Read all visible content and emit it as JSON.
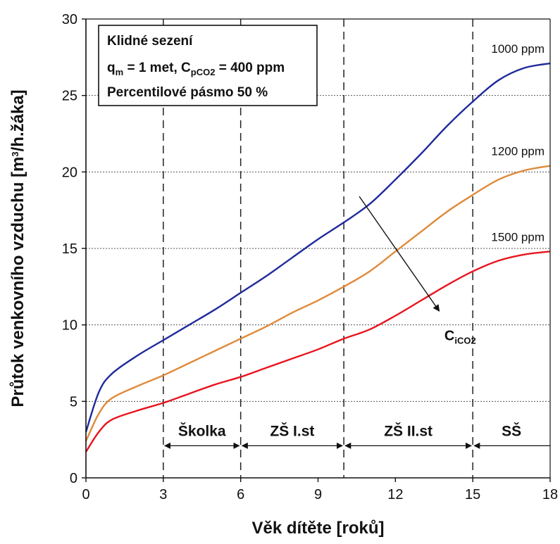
{
  "chart_data": {
    "type": "line",
    "xlabel": "Věk dítěte [roků]",
    "ylabel_pre": "Průtok venkovního vzduchu [m",
    "ylabel_sup": "3",
    "ylabel_post": "/h.žáka]",
    "xlim": [
      0,
      18
    ],
    "ylim": [
      0,
      30
    ],
    "xticks": [
      0,
      3,
      6,
      9,
      12,
      15,
      18
    ],
    "yticks": [
      0,
      5,
      10,
      15,
      20,
      25,
      30
    ],
    "grid": "horizontal dotted",
    "series": [
      {
        "name": "1000 ppm",
        "color": "#1f2a9b",
        "points": [
          [
            0,
            3.0
          ],
          [
            0.5,
            5.6
          ],
          [
            1,
            6.8
          ],
          [
            2,
            8.0
          ],
          [
            3,
            9.0
          ],
          [
            4,
            10.0
          ],
          [
            5,
            11.0
          ],
          [
            6,
            12.1
          ],
          [
            7,
            13.2
          ],
          [
            8,
            14.4
          ],
          [
            9,
            15.6
          ],
          [
            10,
            16.7
          ],
          [
            11,
            17.9
          ],
          [
            12,
            19.5
          ],
          [
            13,
            21.2
          ],
          [
            14,
            23.0
          ],
          [
            15,
            24.6
          ],
          [
            16,
            26.0
          ],
          [
            17,
            26.8
          ],
          [
            18,
            27.1
          ]
        ]
      },
      {
        "name": "1200 ppm",
        "color": "#e08a3a",
        "points": [
          [
            0,
            2.4
          ],
          [
            0.5,
            4.2
          ],
          [
            1,
            5.2
          ],
          [
            2,
            6.0
          ],
          [
            3,
            6.7
          ],
          [
            4,
            7.5
          ],
          [
            5,
            8.3
          ],
          [
            6,
            9.1
          ],
          [
            7,
            9.9
          ],
          [
            8,
            10.8
          ],
          [
            9,
            11.6
          ],
          [
            10,
            12.5
          ],
          [
            11,
            13.5
          ],
          [
            12,
            14.8
          ],
          [
            13,
            16.1
          ],
          [
            14,
            17.4
          ],
          [
            15,
            18.5
          ],
          [
            16,
            19.5
          ],
          [
            17,
            20.1
          ],
          [
            18,
            20.4
          ]
        ]
      },
      {
        "name": "1500 ppm",
        "color": "#e8141e",
        "points": [
          [
            0,
            1.7
          ],
          [
            0.5,
            3.0
          ],
          [
            1,
            3.8
          ],
          [
            2,
            4.4
          ],
          [
            3,
            4.9
          ],
          [
            4,
            5.5
          ],
          [
            5,
            6.1
          ],
          [
            6,
            6.6
          ],
          [
            7,
            7.2
          ],
          [
            8,
            7.8
          ],
          [
            9,
            8.4
          ],
          [
            10,
            9.1
          ],
          [
            11,
            9.7
          ],
          [
            12,
            10.6
          ],
          [
            13,
            11.6
          ],
          [
            14,
            12.6
          ],
          [
            15,
            13.5
          ],
          [
            16,
            14.2
          ],
          [
            17,
            14.6
          ],
          [
            18,
            14.8
          ]
        ]
      }
    ],
    "phases": [
      {
        "label": "Školka",
        "from": 3,
        "to": 6
      },
      {
        "label": "ZŠ I.st",
        "from": 6,
        "to": 10
      },
      {
        "label": "ZŠ II.st",
        "from": 10,
        "to": 15
      },
      {
        "label": "SŠ",
        "from": 15,
        "to": 18
      }
    ],
    "phase_boundaries": [
      3,
      6,
      10,
      15
    ],
    "phase_arrow_y": 2.1,
    "trend_arrow": {
      "from": [
        10.6,
        18.4
      ],
      "to": [
        13.7,
        10.9
      ]
    },
    "trend_label_main": "C",
    "trend_label_sub": "iCO2",
    "trend_label_pos": [
      13.9,
      9.0
    ]
  },
  "info_box": {
    "line1": "Klidné sezení",
    "line2_a": "q",
    "line2_a_sub": "m",
    "line2_b": " = 1 met, C",
    "line2_b_sub": "pCO2",
    "line2_c": " = 400 ppm",
    "line3": "Percentilové pásmo 50 %"
  }
}
